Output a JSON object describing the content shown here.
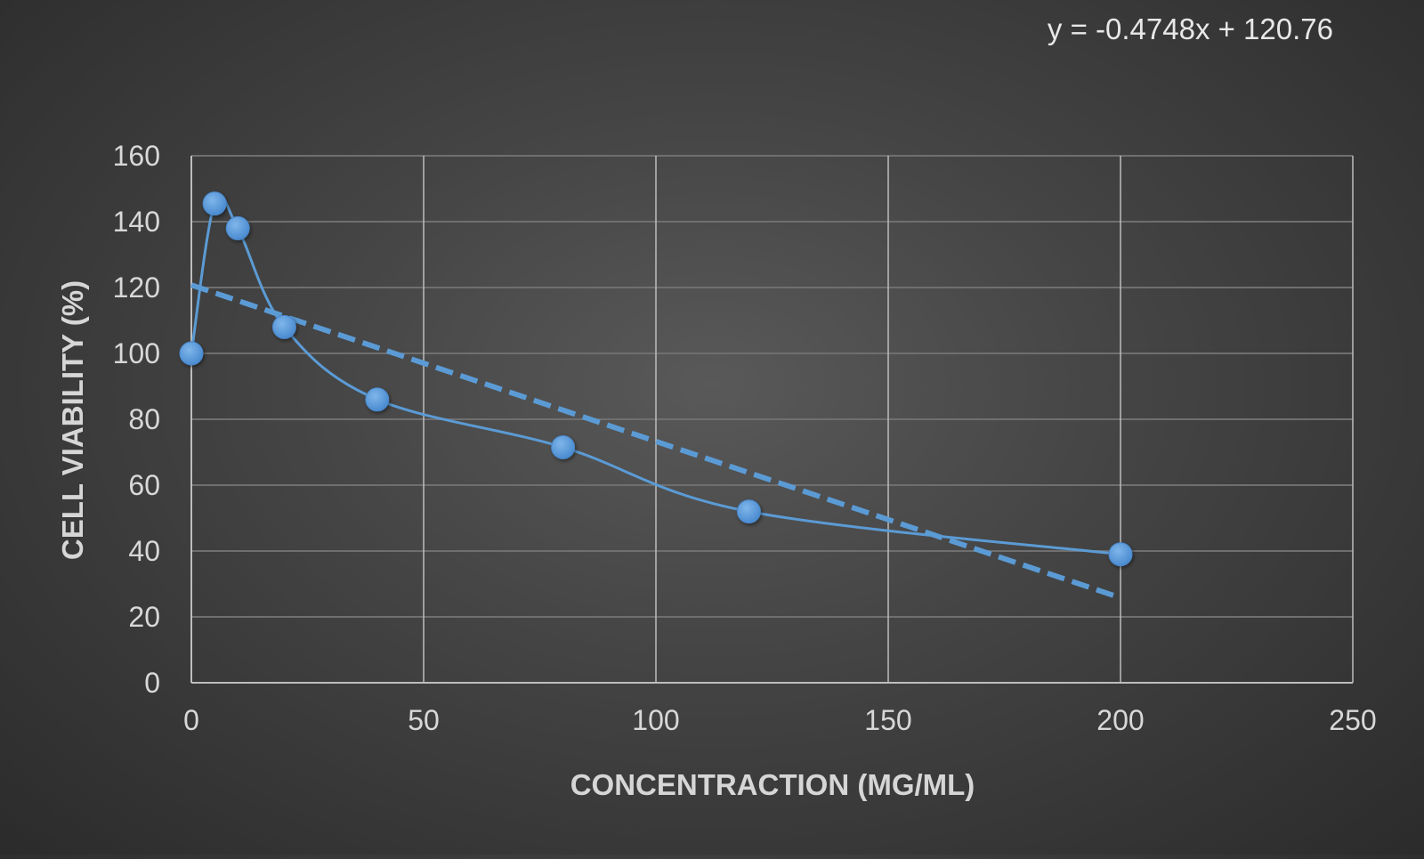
{
  "chart_data": {
    "type": "scatter",
    "title": "",
    "xlabel": "CONCENTRACTION (MG/ML)",
    "ylabel": "CELL VIABILITY (%)",
    "xlim": [
      0,
      250
    ],
    "ylim": [
      0,
      160
    ],
    "x_ticks": [
      0,
      50,
      100,
      150,
      200,
      250
    ],
    "y_ticks": [
      0,
      20,
      40,
      60,
      80,
      100,
      120,
      140,
      160
    ],
    "grid": true,
    "legend": "none",
    "series": [
      {
        "style": "smoothed-line-with-markers",
        "color": "#5b9bd5",
        "x": [
          0,
          5,
          10,
          20,
          40,
          80,
          120,
          200
        ],
        "y": [
          100,
          145.5,
          138,
          108,
          86,
          71.5,
          52,
          39
        ]
      }
    ],
    "trendline": {
      "type": "linear",
      "style": "dashed",
      "color": "#5b9bd5",
      "slope": -0.4748,
      "intercept": 120.76,
      "x_range": [
        0,
        200
      ],
      "equation": "y = -0.4748x + 120.76"
    }
  }
}
